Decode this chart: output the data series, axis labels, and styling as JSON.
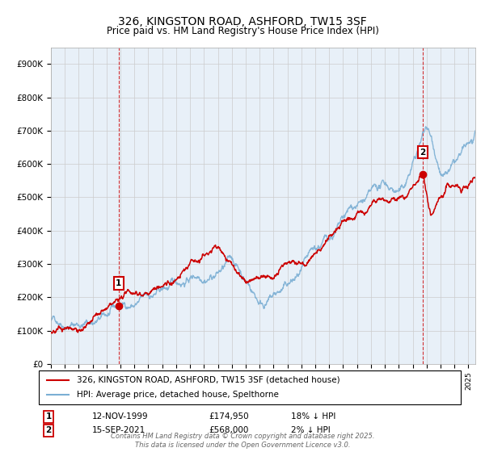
{
  "title": "326, KINGSTON ROAD, ASHFORD, TW15 3SF",
  "subtitle": "Price paid vs. HM Land Registry's House Price Index (HPI)",
  "yticks": [
    0,
    100000,
    200000,
    300000,
    400000,
    500000,
    600000,
    700000,
    800000,
    900000
  ],
  "ytick_labels": [
    "£0",
    "£100K",
    "£200K",
    "£300K",
    "£400K",
    "£500K",
    "£600K",
    "£700K",
    "£800K",
    "£900K"
  ],
  "xlim_start": 1995.0,
  "xlim_end": 2025.5,
  "ylim": [
    0,
    950000
  ],
  "hpi_color": "#7bafd4",
  "price_color": "#cc0000",
  "sale1_x": 1999.87,
  "sale1_price": 174950,
  "sale2_x": 2021.71,
  "sale2_price": 568000,
  "sale1_date": "12-NOV-1999",
  "sale2_date": "15-SEP-2021",
  "legend_label_price": "326, KINGSTON ROAD, ASHFORD, TW15 3SF (detached house)",
  "legend_label_hpi": "HPI: Average price, detached house, Spelthorne",
  "footer": "Contains HM Land Registry data © Crown copyright and database right 2025.\nThis data is licensed under the Open Government Licence v3.0.",
  "background_color": "#ffffff",
  "grid_color": "#cccccc",
  "plot_bg_color": "#e8f0f8"
}
